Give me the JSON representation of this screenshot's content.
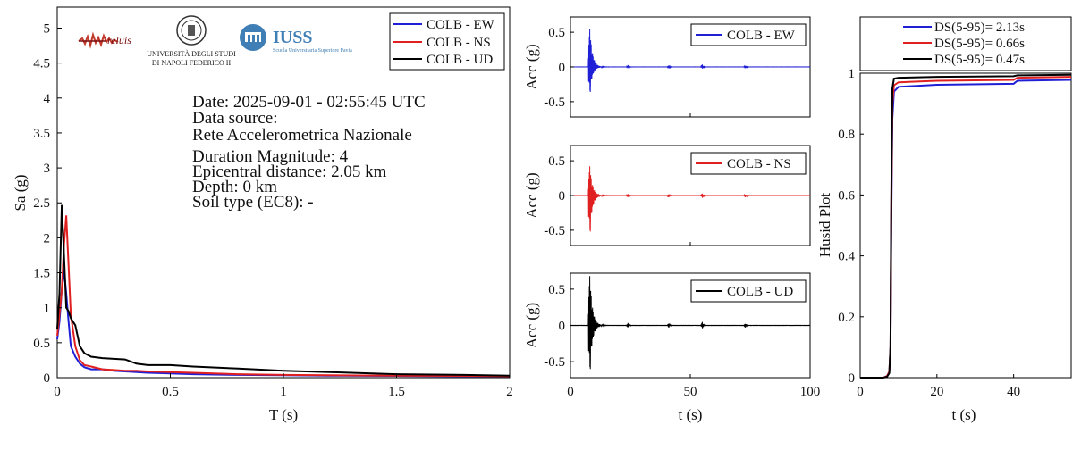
{
  "chart_data": [
    {
      "id": "spectrum",
      "type": "line",
      "xlabel": "T (s)",
      "ylabel": "Sa (g)",
      "xlim": [
        0,
        2
      ],
      "ylim": [
        0,
        5.3
      ],
      "xticks": [
        "0",
        "0.5",
        "1",
        "1.5",
        "2"
      ],
      "yticks": [
        "0",
        "0.5",
        "1",
        "1.5",
        "2",
        "2.5",
        "3",
        "3.5",
        "4",
        "4.5",
        "5"
      ],
      "legend_position": "top-right",
      "series": [
        {
          "name": "COLB - EW",
          "color": "#1f1fd6",
          "x": [
            0,
            0.01,
            0.02,
            0.03,
            0.04,
            0.05,
            0.06,
            0.08,
            0.1,
            0.12,
            0.15,
            0.2,
            0.25,
            0.3,
            0.35,
            0.4,
            0.5,
            0.6,
            0.8,
            1.0,
            1.2,
            1.5,
            1.8,
            2.0
          ],
          "y": [
            0.55,
            0.8,
            1.25,
            1.55,
            1.2,
            0.8,
            0.45,
            0.3,
            0.2,
            0.15,
            0.12,
            0.12,
            0.1,
            0.09,
            0.08,
            0.07,
            0.06,
            0.05,
            0.04,
            0.035,
            0.03,
            0.025,
            0.02,
            0.02
          ]
        },
        {
          "name": "COLB - NS",
          "color": "#e02020",
          "x": [
            0,
            0.01,
            0.02,
            0.03,
            0.04,
            0.05,
            0.06,
            0.08,
            0.1,
            0.12,
            0.15,
            0.2,
            0.25,
            0.3,
            0.35,
            0.4,
            0.5,
            0.6,
            0.8,
            1.0,
            1.2,
            1.5,
            1.8,
            2.0
          ],
          "y": [
            0.6,
            0.9,
            1.25,
            1.9,
            2.32,
            1.6,
            0.9,
            0.45,
            0.25,
            0.18,
            0.16,
            0.12,
            0.11,
            0.1,
            0.1,
            0.09,
            0.08,
            0.07,
            0.05,
            0.04,
            0.035,
            0.03,
            0.025,
            0.02
          ]
        },
        {
          "name": "COLB - UD",
          "color": "#000000",
          "x": [
            0,
            0.01,
            0.02,
            0.03,
            0.04,
            0.05,
            0.06,
            0.08,
            0.1,
            0.12,
            0.15,
            0.2,
            0.25,
            0.3,
            0.35,
            0.4,
            0.5,
            0.6,
            0.8,
            1.0,
            1.2,
            1.5,
            1.8,
            2.0
          ],
          "y": [
            0.7,
            1.2,
            2.47,
            1.75,
            1.0,
            0.95,
            0.85,
            0.75,
            0.45,
            0.35,
            0.3,
            0.28,
            0.27,
            0.26,
            0.2,
            0.18,
            0.18,
            0.16,
            0.13,
            0.1,
            0.08,
            0.05,
            0.04,
            0.03
          ]
        }
      ]
    },
    {
      "id": "acc-ew",
      "type": "line",
      "xlabel": "t (s)",
      "ylabel": "Acc (g)",
      "xlim": [
        0,
        100
      ],
      "ylim": [
        -0.72,
        0.72
      ],
      "xticks": [
        "0",
        "50",
        "100"
      ],
      "yticks": [
        "-0.5",
        "0",
        "0.5"
      ],
      "legend_position": "top-right",
      "series": [
        {
          "name": "COLB - EW",
          "color": "#1f1fd6",
          "peak_pos": 0.55,
          "peak_neg": -0.36
        }
      ]
    },
    {
      "id": "acc-ns",
      "type": "line",
      "xlabel": "t (s)",
      "ylabel": "Acc (g)",
      "xlim": [
        0,
        100
      ],
      "ylim": [
        -0.72,
        0.72
      ],
      "xticks": [
        "0",
        "50",
        "100"
      ],
      "yticks": [
        "-0.5",
        "0",
        "0.5"
      ],
      "legend_position": "top-right",
      "series": [
        {
          "name": "COLB - NS",
          "color": "#e02020",
          "peak_pos": 0.42,
          "peak_neg": -0.52
        }
      ]
    },
    {
      "id": "acc-ud",
      "type": "line",
      "xlabel": "t (s)",
      "ylabel": "Acc (g)",
      "xlim": [
        0,
        100
      ],
      "ylim": [
        -0.72,
        0.72
      ],
      "xticks": [
        "0",
        "50",
        "100"
      ],
      "yticks": [
        "-0.5",
        "0",
        "0.5"
      ],
      "legend_position": "top-right",
      "series": [
        {
          "name": "COLB - UD",
          "color": "#000000",
          "peak_pos": 0.68,
          "peak_neg": -0.6
        }
      ]
    },
    {
      "id": "husid",
      "type": "line",
      "xlabel": "t (s)",
      "ylabel": "Husid Plot",
      "xlim": [
        0,
        55
      ],
      "ylim": [
        0,
        1
      ],
      "xticks": [
        "0",
        "20",
        "40"
      ],
      "yticks": [
        "0",
        "0.2",
        "0.4",
        "0.6",
        "0.8",
        "1"
      ],
      "legend_position": "top",
      "series": [
        {
          "name": "DS(5-95)= 2.13s",
          "color": "#1f1fd6",
          "x": [
            0,
            6,
            7,
            7.6,
            7.9,
            8.1,
            8.4,
            8.8,
            10,
            20,
            40,
            41,
            55
          ],
          "y": [
            0,
            0,
            0.005,
            0.02,
            0.1,
            0.5,
            0.85,
            0.94,
            0.955,
            0.962,
            0.965,
            0.975,
            0.978
          ]
        },
        {
          "name": "DS(5-95)= 0.66s",
          "color": "#e02020",
          "x": [
            0,
            6,
            7,
            7.6,
            7.9,
            8.1,
            8.4,
            8.8,
            10,
            20,
            40,
            41,
            55
          ],
          "y": [
            0,
            0,
            0.005,
            0.02,
            0.1,
            0.55,
            0.9,
            0.96,
            0.97,
            0.975,
            0.978,
            0.985,
            0.988
          ]
        },
        {
          "name": "DS(5-95)= 0.47s",
          "color": "#000000",
          "x": [
            0,
            6,
            7,
            7.6,
            7.9,
            8.1,
            8.4,
            8.8,
            10,
            20,
            40,
            41,
            55
          ],
          "y": [
            0,
            0,
            0.003,
            0.015,
            0.1,
            0.6,
            0.95,
            0.982,
            0.985,
            0.988,
            0.99,
            0.993,
            0.995
          ]
        }
      ]
    }
  ],
  "info_box": {
    "date": "Date: 2025-09-01 - 02:55:45 UTC",
    "source_label": "Data source:",
    "source_name": "Rete Accelerometrica Nazionale",
    "magnitude": "Duration Magnitude: 4",
    "distance": "Epicentral distance: 2.05 km",
    "depth": "Depth: 0 km",
    "soil": "Soil type (EC8): -"
  },
  "logos": {
    "reluis": "reluis",
    "unina_line1": "UNIVERSITÀ DEGLI STUDI",
    "unina_line2": "DI NAPOLI FEDERICO II",
    "iuss": "IUSS",
    "iuss_sub": "Scuola Universitaria Superiore Pavia"
  }
}
